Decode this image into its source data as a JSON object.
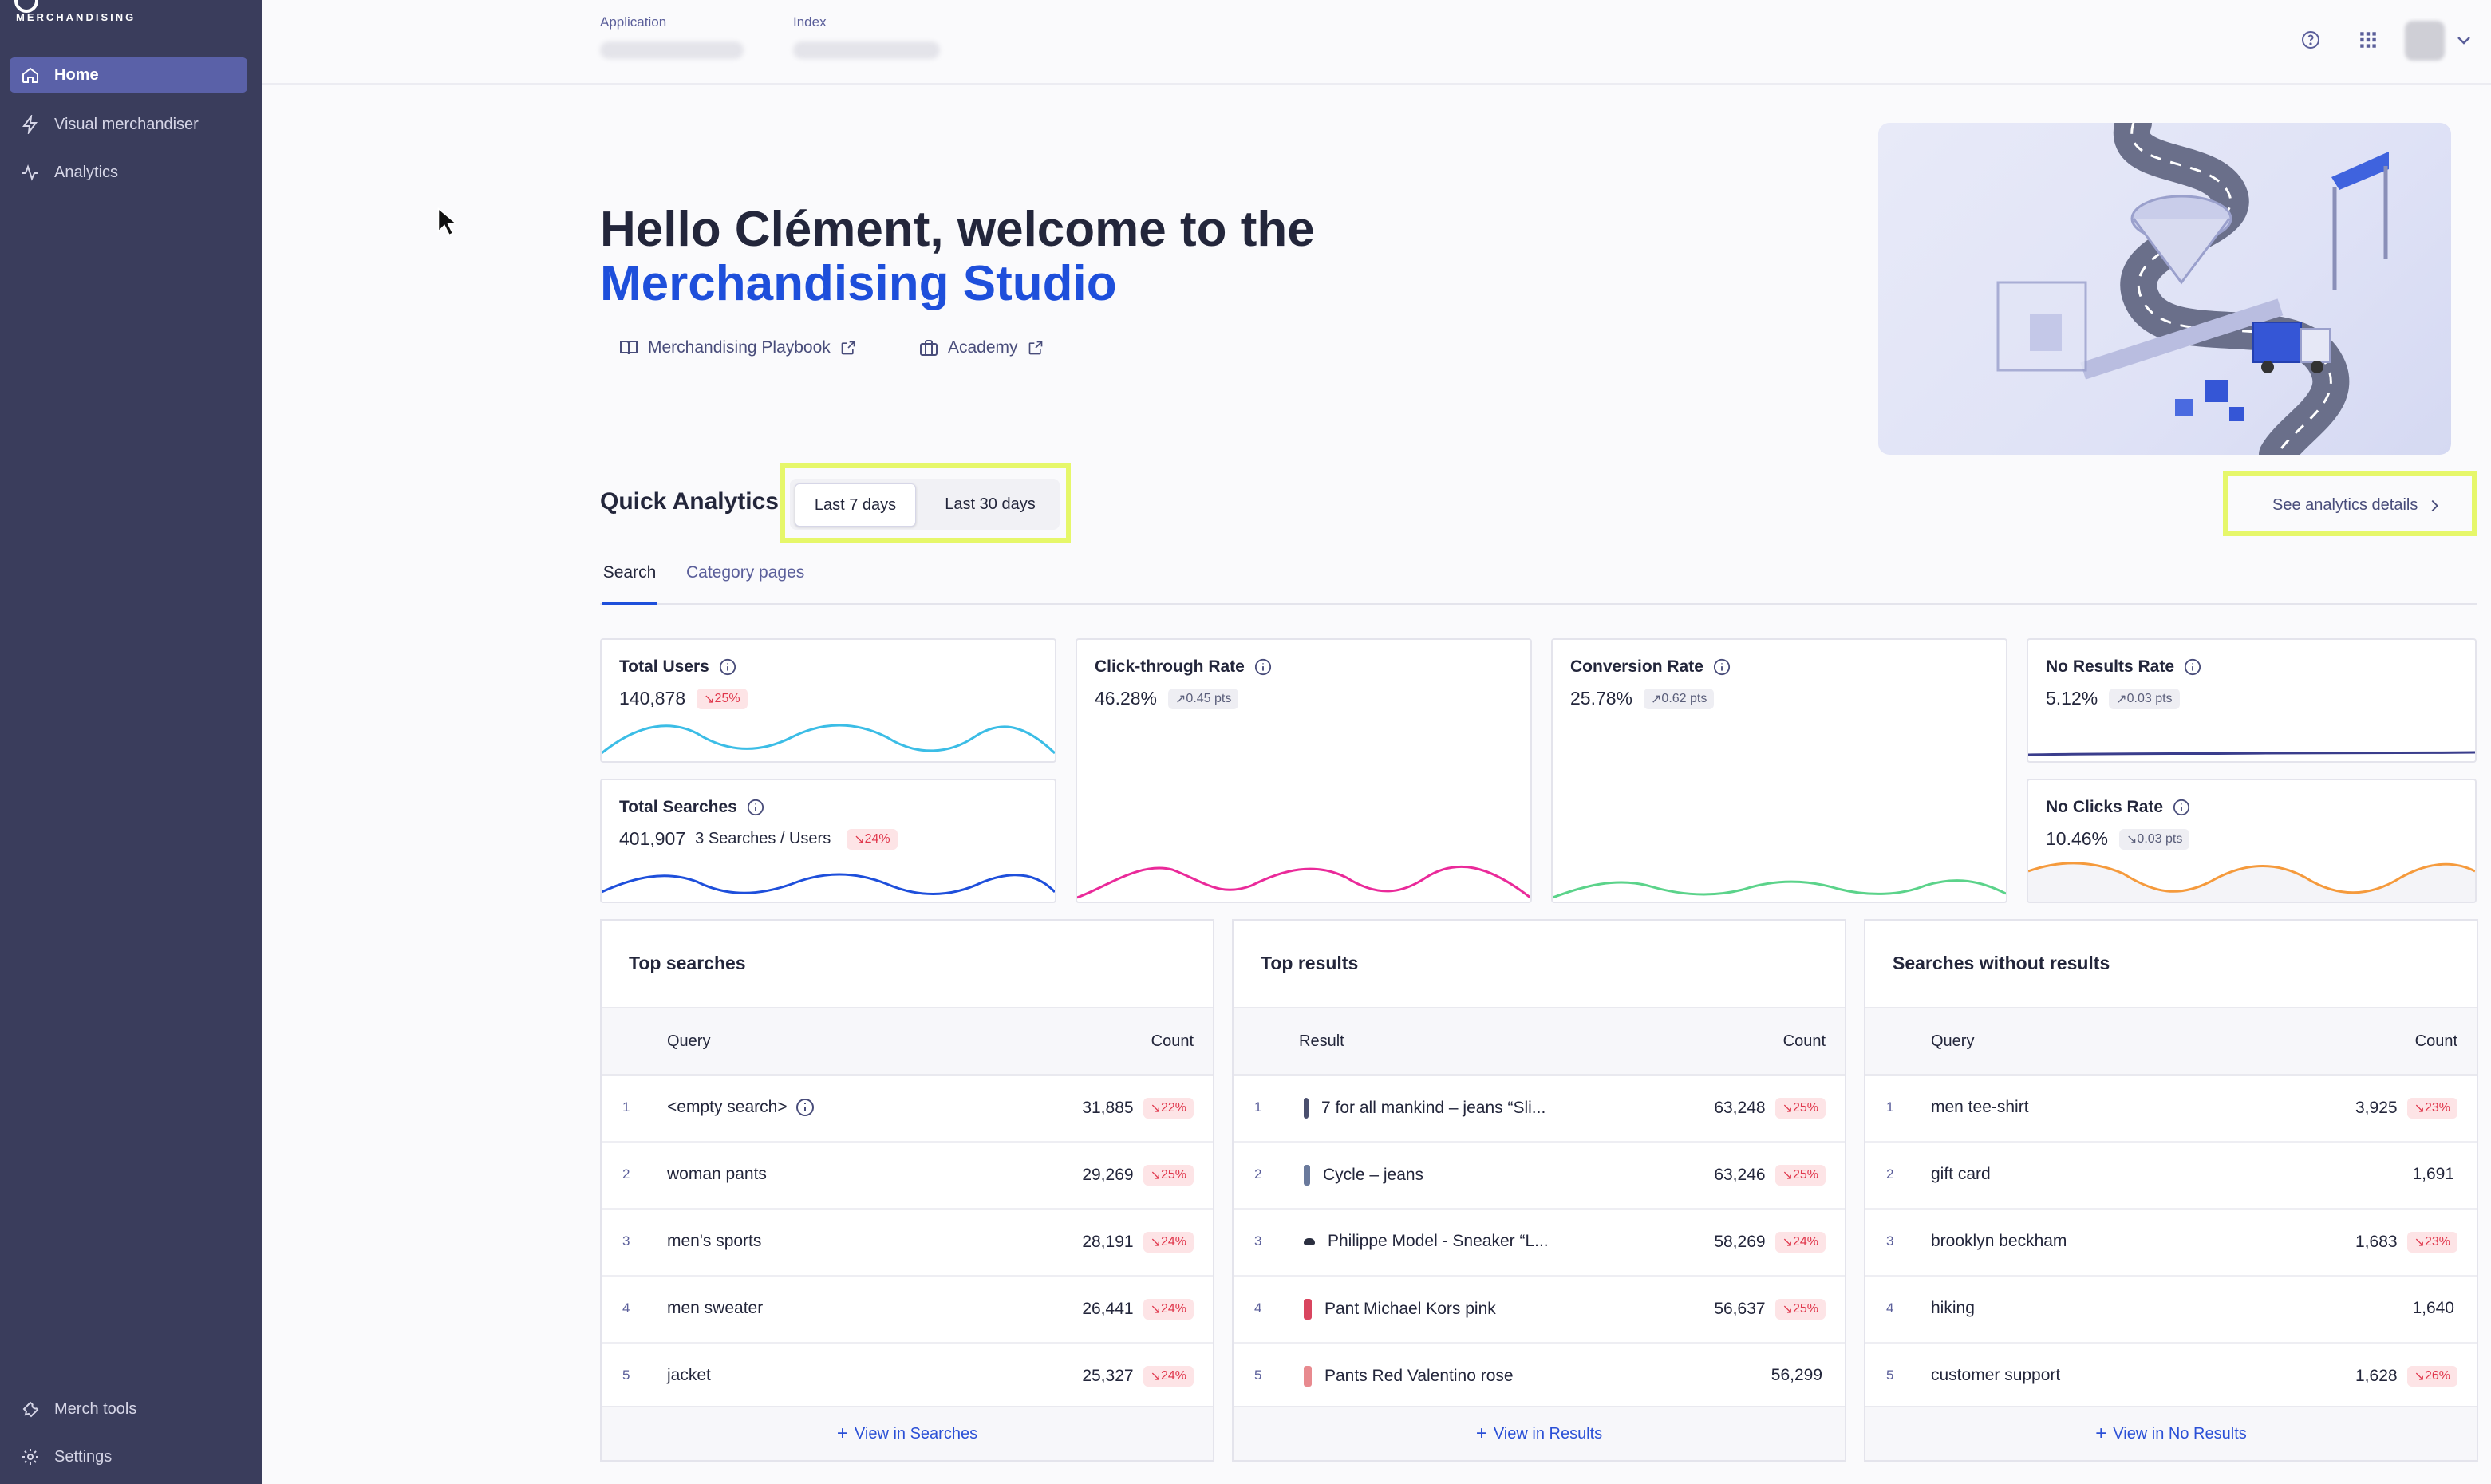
{
  "sidebar": {
    "brand_sub": "MERCHANDISING",
    "items": [
      {
        "label": "Home",
        "icon": "home-icon"
      },
      {
        "label": "Visual merchandiser",
        "icon": "lightning-icon"
      },
      {
        "label": "Analytics",
        "icon": "activity-icon"
      }
    ],
    "bottom_items": [
      {
        "label": "Merch tools",
        "icon": "wrench-icon"
      },
      {
        "label": "Settings",
        "icon": "gear-icon"
      }
    ]
  },
  "header": {
    "application_label": "Application",
    "index_label": "Index"
  },
  "hero": {
    "title_line1": "Hello Clément, welcome to the",
    "title_line2": "Merchandising Studio",
    "links": [
      "Merchandising Playbook",
      "Academy"
    ]
  },
  "quick_analytics": {
    "title": "Quick Analytics",
    "ranges": [
      "Last 7 days",
      "Last 30 days"
    ],
    "selected_range": "Last 7 days",
    "details_link": "See analytics details",
    "tabs": [
      "Search",
      "Category pages"
    ]
  },
  "metrics": {
    "total_users": {
      "label": "Total Users",
      "value": "140,878",
      "delta": "25%",
      "color": "#3bbde6"
    },
    "total_searches": {
      "label": "Total Searches",
      "value": "401,907",
      "extra": "3 Searches / Users",
      "delta": "24%",
      "color": "#1e4fdb"
    },
    "ctr": {
      "label": "Click-through Rate",
      "value": "46.28%",
      "delta": "0.45 pts",
      "color": "#ea2a9a"
    },
    "conversion": {
      "label": "Conversion Rate",
      "value": "25.78%",
      "delta": "0.62 pts",
      "color": "#5bd38a"
    },
    "no_results": {
      "label": "No Results Rate",
      "value": "5.12%",
      "delta": "0.03 pts",
      "color": "#3a3d8c"
    },
    "no_clicks": {
      "label": "No Clicks Rate",
      "value": "10.46%",
      "delta": "0.03 pts",
      "color": "#f59a3c"
    }
  },
  "tables": {
    "top_searches": {
      "title": "Top searches",
      "col_query": "Query",
      "col_count": "Count",
      "rows": [
        {
          "rank": "1",
          "query": "<empty search>",
          "count": "31,885",
          "delta": "22%"
        },
        {
          "rank": "2",
          "query": "woman pants",
          "count": "29,269",
          "delta": "25%"
        },
        {
          "rank": "3",
          "query": "men's sports",
          "count": "28,191",
          "delta": "24%"
        },
        {
          "rank": "4",
          "query": "men sweater",
          "count": "26,441",
          "delta": "24%"
        },
        {
          "rank": "5",
          "query": "jacket",
          "count": "25,327",
          "delta": "24%"
        }
      ],
      "footer": "View in Searches"
    },
    "top_results": {
      "title": "Top results",
      "col_query": "Result",
      "col_count": "Count",
      "rows": [
        {
          "rank": "1",
          "query": "7 for all mankind – jeans “Sli...",
          "count": "63,248",
          "delta": "25%"
        },
        {
          "rank": "2",
          "query": "Cycle – jeans",
          "count": "63,246",
          "delta": "25%"
        },
        {
          "rank": "3",
          "query": "Philippe Model - Sneaker “L...",
          "count": "58,269",
          "delta": "24%"
        },
        {
          "rank": "4",
          "query": "Pant Michael Kors pink",
          "count": "56,637",
          "delta": "25%"
        },
        {
          "rank": "5",
          "query": "Pants Red Valentino rose",
          "count": "56,299",
          "delta": ""
        }
      ],
      "footer": "View in Results"
    },
    "no_results": {
      "title": "Searches without results",
      "col_query": "Query",
      "col_count": "Count",
      "rows": [
        {
          "rank": "1",
          "query": "men tee-shirt",
          "count": "3,925",
          "delta": "23%"
        },
        {
          "rank": "2",
          "query": "gift card",
          "count": "1,691",
          "delta": ""
        },
        {
          "rank": "3",
          "query": "brooklyn beckham",
          "count": "1,683",
          "delta": "23%"
        },
        {
          "rank": "4",
          "query": "hiking",
          "count": "1,640",
          "delta": ""
        },
        {
          "rank": "5",
          "query": "customer support",
          "count": "1,628",
          "delta": "26%"
        }
      ],
      "footer": "View in No Results"
    }
  }
}
